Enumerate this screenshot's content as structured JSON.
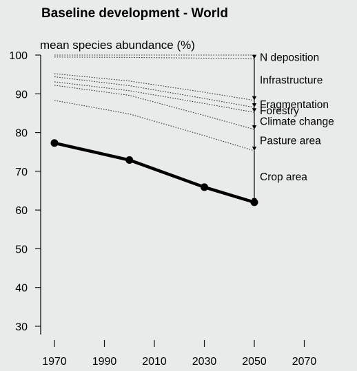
{
  "chart_data": {
    "type": "line",
    "title": "Baseline development - World",
    "ylabel": "mean species abundance (%)",
    "xlabel": "",
    "xlim": [
      1965,
      2085
    ],
    "ylim": [
      30,
      100
    ],
    "x_ticks": [
      1970,
      1990,
      2010,
      2030,
      2050,
      2070
    ],
    "y_ticks": [
      30,
      40,
      50,
      60,
      70,
      80,
      90,
      100
    ],
    "grid": false,
    "series": [
      {
        "style": "solid-thick",
        "color": "#000000",
        "markers": true,
        "x": [
          1970,
          2000,
          2030,
          2050
        ],
        "y": [
          77.3,
          72.9,
          65.9,
          62
        ]
      },
      {
        "style": "dotted",
        "x": [
          1970,
          2000,
          2030,
          2050
        ],
        "y": [
          88.3,
          84.8,
          79.2,
          75.3
        ]
      },
      {
        "style": "dotted",
        "x": [
          1970,
          2000,
          2030,
          2050
        ],
        "y": [
          92.2,
          89.6,
          84.4,
          80.8
        ]
      },
      {
        "style": "dotted",
        "x": [
          1970,
          2000,
          2030,
          2050
        ],
        "y": [
          93.1,
          90.8,
          87.5,
          85.2
        ]
      },
      {
        "style": "dotted",
        "x": [
          1970,
          2000,
          2030,
          2050
        ],
        "y": [
          94.4,
          92.1,
          88.8,
          86.5
        ]
      },
      {
        "style": "dotted",
        "x": [
          1970,
          2000,
          2030,
          2050
        ],
        "y": [
          95.2,
          93.3,
          90.4,
          88.3
        ]
      },
      {
        "style": "dotted",
        "x": [
          1970,
          2000,
          2030,
          2050
        ],
        "y": [
          99.5,
          99.4,
          99.2,
          99.0
        ]
      },
      {
        "style": "dotted",
        "x": [
          1970,
          2000,
          2030,
          2050
        ],
        "y": [
          100,
          100,
          100,
          100
        ]
      }
    ],
    "annotations": [
      {
        "label": "N deposition",
        "y": 99.6
      },
      {
        "label": "Infrastructure",
        "y": 93.7
      },
      {
        "label": "Fragmentation",
        "y": 87.4
      },
      {
        "label": "Forestry",
        "y": 85.8
      },
      {
        "label": "Climate change",
        "y": 83.0
      },
      {
        "label": "Pasture area",
        "y": 78.1
      },
      {
        "label": "Crop area",
        "y": 68.7
      }
    ],
    "arrow_x": 2050,
    "arrow_points": [
      100,
      99.0,
      88.3,
      86.5,
      85.2,
      80.8,
      75.3,
      62
    ]
  }
}
